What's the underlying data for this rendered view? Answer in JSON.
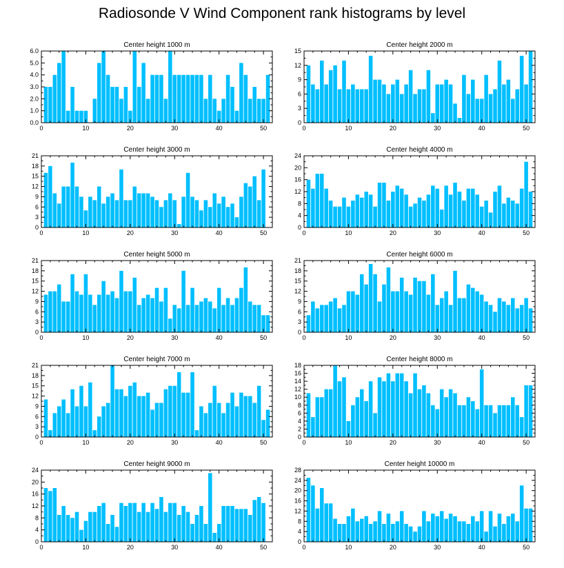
{
  "title": "Radiosonde V Wind Component rank histograms by level",
  "chart_data": [
    {
      "type": "bar",
      "title": "Center height 1000 m",
      "xlim": [
        0,
        52
      ],
      "ylim": [
        0,
        6
      ],
      "xticks": [
        0,
        10,
        20,
        30,
        40,
        50
      ],
      "yticks": [
        "0.0",
        "1.0",
        "2.0",
        "3.0",
        "4.0",
        "5.0",
        "6.0"
      ],
      "x": [
        1,
        2,
        3,
        4,
        5,
        6,
        7,
        8,
        9,
        10,
        11,
        12,
        13,
        14,
        15,
        16,
        17,
        18,
        19,
        20,
        21,
        22,
        23,
        24,
        25,
        26,
        27,
        28,
        29,
        30,
        31,
        32,
        33,
        34,
        35,
        36,
        37,
        38,
        39,
        40,
        41,
        42,
        43,
        44,
        45,
        46,
        47,
        48,
        49,
        50,
        51
      ],
      "values": [
        3,
        3,
        4,
        5,
        6,
        1,
        3,
        1,
        1,
        1,
        0,
        2,
        5,
        6,
        4,
        3,
        3,
        2,
        3,
        1,
        6,
        3,
        5,
        2,
        4,
        4,
        4,
        2,
        6,
        4,
        4,
        4,
        4,
        4,
        4,
        4,
        2,
        4,
        2,
        1,
        2,
        4,
        3,
        1,
        5,
        4,
        2,
        3,
        2,
        2,
        4
      ]
    },
    {
      "type": "bar",
      "title": "Center height 2000 m",
      "xlim": [
        0,
        52
      ],
      "ylim": [
        0,
        15
      ],
      "xticks": [
        0,
        10,
        20,
        30,
        40,
        50
      ],
      "yticks": [
        "0",
        "3",
        "6",
        "9",
        "12",
        "15"
      ],
      "x": [
        1,
        2,
        3,
        4,
        5,
        6,
        7,
        8,
        9,
        10,
        11,
        12,
        13,
        14,
        15,
        16,
        17,
        18,
        19,
        20,
        21,
        22,
        23,
        24,
        25,
        26,
        27,
        28,
        29,
        30,
        31,
        32,
        33,
        34,
        35,
        36,
        37,
        38,
        39,
        40,
        41,
        42,
        43,
        44,
        45,
        46,
        47,
        48,
        49,
        50,
        51
      ],
      "values": [
        12,
        8,
        7,
        13,
        8,
        11,
        12,
        7,
        13,
        7,
        8,
        7,
        7,
        7,
        14,
        9,
        9,
        8,
        6,
        8,
        9,
        6,
        8,
        11,
        6,
        7,
        7,
        11,
        2,
        8,
        8,
        9,
        8,
        4,
        1,
        10,
        6,
        9,
        5,
        5,
        10,
        6,
        7,
        13,
        8,
        9,
        5,
        7,
        14,
        8,
        15
      ]
    },
    {
      "type": "bar",
      "title": "Center height 3000 m",
      "xlim": [
        0,
        52
      ],
      "ylim": [
        0,
        21
      ],
      "xticks": [
        0,
        10,
        20,
        30,
        40,
        50
      ],
      "yticks": [
        "0",
        "3",
        "6",
        "9",
        "12",
        "15",
        "18",
        "21"
      ],
      "x": [
        1,
        2,
        3,
        4,
        5,
        6,
        7,
        8,
        9,
        10,
        11,
        12,
        13,
        14,
        15,
        16,
        17,
        18,
        19,
        20,
        21,
        22,
        23,
        24,
        25,
        26,
        27,
        28,
        29,
        30,
        31,
        32,
        33,
        34,
        35,
        36,
        37,
        38,
        39,
        40,
        41,
        42,
        43,
        44,
        45,
        46,
        47,
        48,
        49,
        50,
        51
      ],
      "values": [
        16,
        18,
        10,
        7,
        12,
        12,
        19,
        12,
        9,
        5,
        9,
        8,
        12,
        7,
        9,
        10,
        8,
        17,
        8,
        8,
        12,
        10,
        10,
        10,
        9,
        8,
        6,
        8,
        10,
        8,
        1,
        9,
        16,
        9,
        8,
        5,
        8,
        6,
        10,
        7,
        9,
        6,
        7,
        3,
        9,
        13,
        12,
        15,
        8,
        17,
        0
      ]
    },
    {
      "type": "bar",
      "title": "Center height 4000 m",
      "xlim": [
        0,
        52
      ],
      "ylim": [
        0,
        24
      ],
      "xticks": [
        0,
        10,
        20,
        30,
        40,
        50
      ],
      "yticks": [
        "0",
        "4",
        "8",
        "12",
        "16",
        "20",
        "24"
      ],
      "x": [
        1,
        2,
        3,
        4,
        5,
        6,
        7,
        8,
        9,
        10,
        11,
        12,
        13,
        14,
        15,
        16,
        17,
        18,
        19,
        20,
        21,
        22,
        23,
        24,
        25,
        26,
        27,
        28,
        29,
        30,
        31,
        32,
        33,
        34,
        35,
        36,
        37,
        38,
        39,
        40,
        41,
        42,
        43,
        44,
        45,
        46,
        47,
        48,
        49,
        50,
        51
      ],
      "values": [
        16,
        13,
        18,
        18,
        13,
        9,
        7,
        7,
        10,
        7,
        9,
        11,
        10,
        12,
        11,
        7,
        15,
        15,
        9,
        12,
        14,
        13,
        11,
        7,
        8,
        10,
        9,
        11,
        14,
        13,
        6,
        14,
        11,
        15,
        12,
        9,
        13,
        13,
        11,
        7,
        9,
        5,
        12,
        14,
        8,
        10,
        9,
        8,
        13,
        22,
        12
      ]
    },
    {
      "type": "bar",
      "title": "Center height 5000 m",
      "xlim": [
        0,
        52
      ],
      "ylim": [
        0,
        21
      ],
      "xticks": [
        0,
        10,
        20,
        30,
        40,
        50
      ],
      "yticks": [
        "0",
        "3",
        "6",
        "9",
        "12",
        "15",
        "18",
        "21"
      ],
      "x": [
        1,
        2,
        3,
        4,
        5,
        6,
        7,
        8,
        9,
        10,
        11,
        12,
        13,
        14,
        15,
        16,
        17,
        18,
        19,
        20,
        21,
        22,
        23,
        24,
        25,
        26,
        27,
        28,
        29,
        30,
        31,
        32,
        33,
        34,
        35,
        36,
        37,
        38,
        39,
        40,
        41,
        42,
        43,
        44,
        45,
        46,
        47,
        48,
        49,
        50,
        51
      ],
      "values": [
        11,
        12,
        12,
        14,
        9,
        9,
        17,
        12,
        11,
        17,
        11,
        8,
        11,
        15,
        11,
        12,
        10,
        18,
        12,
        12,
        16,
        8,
        10,
        11,
        10,
        13,
        9,
        13,
        4,
        8,
        7,
        18,
        8,
        13,
        8,
        9,
        10,
        9,
        7,
        13,
        8,
        10,
        8,
        10,
        13,
        19,
        9,
        8,
        8,
        5,
        5
      ]
    },
    {
      "type": "bar",
      "title": "Center height 6000 m",
      "xlim": [
        0,
        52
      ],
      "ylim": [
        0,
        21
      ],
      "xticks": [
        0,
        10,
        20,
        30,
        40,
        50
      ],
      "yticks": [
        "0",
        "3",
        "6",
        "9",
        "12",
        "15",
        "18",
        "21"
      ],
      "x": [
        1,
        2,
        3,
        4,
        5,
        6,
        7,
        8,
        9,
        10,
        11,
        12,
        13,
        14,
        15,
        16,
        17,
        18,
        19,
        20,
        21,
        22,
        23,
        24,
        25,
        26,
        27,
        28,
        29,
        30,
        31,
        32,
        33,
        34,
        35,
        36,
        37,
        38,
        39,
        40,
        41,
        42,
        43,
        44,
        45,
        46,
        47,
        48,
        49,
        50,
        51
      ],
      "values": [
        5,
        9,
        7,
        8,
        8,
        9,
        10,
        7,
        8,
        12,
        12,
        11,
        17,
        14,
        20,
        17,
        9,
        14,
        19,
        12,
        12,
        16,
        12,
        11,
        16,
        15,
        15,
        11,
        17,
        8,
        10,
        12,
        8,
        18,
        10,
        10,
        14,
        13,
        12,
        11,
        9,
        8,
        6,
        10,
        9,
        8,
        10,
        7,
        8,
        10,
        7
      ]
    },
    {
      "type": "bar",
      "title": "Center height 7000 m",
      "xlim": [
        0,
        52
      ],
      "ylim": [
        0,
        21
      ],
      "xticks": [
        0,
        10,
        20,
        30,
        40,
        50
      ],
      "yticks": [
        "0",
        "3",
        "6",
        "9",
        "12",
        "15",
        "18",
        "21"
      ],
      "x": [
        1,
        2,
        3,
        4,
        5,
        6,
        7,
        8,
        9,
        10,
        11,
        12,
        13,
        14,
        15,
        16,
        17,
        18,
        19,
        20,
        21,
        22,
        23,
        24,
        25,
        26,
        27,
        28,
        29,
        30,
        31,
        32,
        33,
        34,
        35,
        36,
        37,
        38,
        39,
        40,
        41,
        42,
        43,
        44,
        45,
        46,
        47,
        48,
        49,
        50,
        51
      ],
      "values": [
        11,
        2,
        7,
        9,
        11,
        7,
        14,
        9,
        15,
        9,
        16,
        2,
        6,
        9,
        10,
        21,
        14,
        14,
        12,
        15,
        16,
        12,
        12,
        13,
        8,
        10,
        10,
        14,
        15,
        15,
        19,
        13,
        13,
        19,
        2,
        9,
        7,
        10,
        15,
        10,
        7,
        10,
        13,
        9,
        13,
        12,
        12,
        10,
        15,
        5,
        8
      ]
    },
    {
      "type": "bar",
      "title": "Center height 8000 m",
      "xlim": [
        0,
        52
      ],
      "ylim": [
        0,
        18
      ],
      "xticks": [
        0,
        10,
        20,
        30,
        40,
        50
      ],
      "yticks": [
        "0",
        "2",
        "4",
        "6",
        "8",
        "10",
        "12",
        "14",
        "16",
        "18"
      ],
      "x": [
        1,
        2,
        3,
        4,
        5,
        6,
        7,
        8,
        9,
        10,
        11,
        12,
        13,
        14,
        15,
        16,
        17,
        18,
        19,
        20,
        21,
        22,
        23,
        24,
        25,
        26,
        27,
        28,
        29,
        30,
        31,
        32,
        33,
        34,
        35,
        36,
        37,
        38,
        39,
        40,
        41,
        42,
        43,
        44,
        45,
        46,
        47,
        48,
        49,
        50,
        51
      ],
      "values": [
        11,
        5,
        10,
        10,
        12,
        12,
        18,
        14,
        15,
        4,
        8,
        10,
        12,
        9,
        14,
        6,
        15,
        14,
        16,
        14,
        16,
        16,
        14,
        11,
        16,
        12,
        13,
        11,
        8,
        7,
        12,
        10,
        12,
        11,
        8,
        8,
        10,
        9,
        7,
        17,
        8,
        8,
        6,
        8,
        8,
        8,
        10,
        8,
        5,
        13,
        13
      ]
    },
    {
      "type": "bar",
      "title": "Center height 9000 m",
      "xlim": [
        0,
        52
      ],
      "ylim": [
        0,
        24
      ],
      "xticks": [
        0,
        10,
        20,
        30,
        40,
        50
      ],
      "yticks": [
        "0",
        "4",
        "8",
        "12",
        "16",
        "20",
        "24"
      ],
      "x": [
        1,
        2,
        3,
        4,
        5,
        6,
        7,
        8,
        9,
        10,
        11,
        12,
        13,
        14,
        15,
        16,
        17,
        18,
        19,
        20,
        21,
        22,
        23,
        24,
        25,
        26,
        27,
        28,
        29,
        30,
        31,
        32,
        33,
        34,
        35,
        36,
        37,
        38,
        39,
        40,
        41,
        42,
        43,
        44,
        45,
        46,
        47,
        48,
        49,
        50,
        51
      ],
      "values": [
        18,
        17,
        18,
        9,
        12,
        9,
        8,
        10,
        4,
        7,
        10,
        10,
        12,
        13,
        6,
        9,
        5,
        13,
        12,
        13,
        13,
        10,
        13,
        10,
        13,
        11,
        15,
        10,
        13,
        13,
        9,
        12,
        10,
        6,
        9,
        12,
        6,
        23,
        3,
        6,
        12,
        12,
        12,
        11,
        11,
        11,
        9,
        14,
        15,
        13,
        0
      ]
    },
    {
      "type": "bar",
      "title": "Center height 10000 m",
      "xlim": [
        0,
        52
      ],
      "ylim": [
        0,
        28
      ],
      "xticks": [
        0,
        10,
        20,
        30,
        40,
        50
      ],
      "yticks": [
        "0",
        "4",
        "8",
        "12",
        "16",
        "20",
        "24",
        "28"
      ],
      "x": [
        1,
        2,
        3,
        4,
        5,
        6,
        7,
        8,
        9,
        10,
        11,
        12,
        13,
        14,
        15,
        16,
        17,
        18,
        19,
        20,
        21,
        22,
        23,
        24,
        25,
        26,
        27,
        28,
        29,
        30,
        31,
        32,
        33,
        34,
        35,
        36,
        37,
        38,
        39,
        40,
        41,
        42,
        43,
        44,
        45,
        46,
        47,
        48,
        49,
        50,
        51
      ],
      "values": [
        25,
        22,
        13,
        21,
        15,
        15,
        9,
        7,
        7,
        10,
        13,
        8,
        9,
        10,
        7,
        8,
        12,
        7,
        11,
        7,
        8,
        12,
        7,
        6,
        4,
        6,
        12,
        8,
        11,
        10,
        12,
        9,
        11,
        10,
        8,
        8,
        7,
        10,
        8,
        12,
        4,
        12,
        6,
        11,
        7,
        10,
        11,
        8,
        22,
        13,
        13
      ]
    }
  ]
}
